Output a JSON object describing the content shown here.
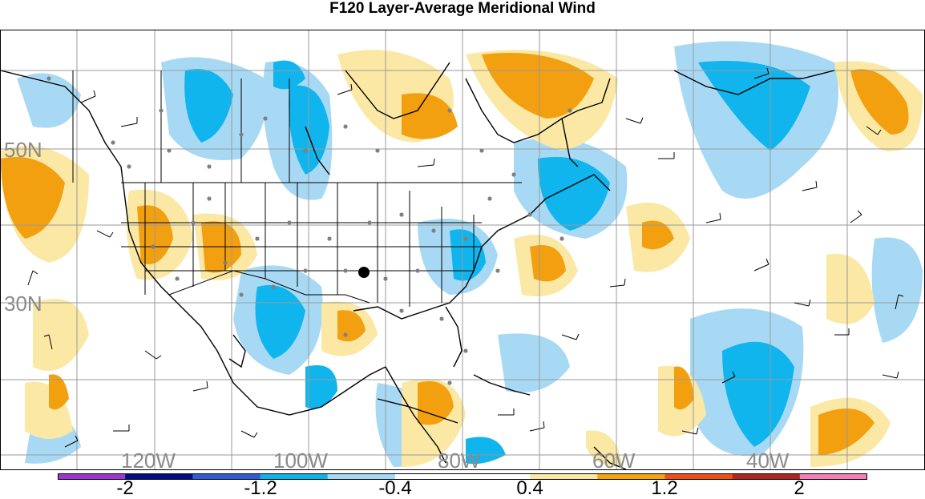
{
  "title": "F120 Layer-Average Meridional Wind",
  "lat_labels": [
    "50N",
    "30N"
  ],
  "lon_labels": [
    "120W",
    "100W",
    "80W",
    "60W",
    "40W"
  ],
  "colorbar": {
    "colors": [
      "#9d36d2",
      "#000d8a",
      "#2f5bd6",
      "#0bb5ec",
      "#a4d8f5",
      "#ffffff",
      "#ffffff",
      "#fce8a6",
      "#f5a40c",
      "#ee4f17",
      "#b3231f",
      "#f57eb7"
    ],
    "labels": [
      "-2",
      "-1.2",
      "-0.4",
      "0.4",
      "1.2",
      "2"
    ]
  },
  "palette": {
    "light_blue": "#a8d9f4",
    "blue": "#0fb5ec",
    "light_yellow": "#fae8a4",
    "orange": "#f3a010",
    "coast": "#000000",
    "grid": "#9a9a9a",
    "station": "#808080"
  },
  "marker": {
    "name": "point-of-interest",
    "color": "#000000"
  }
}
